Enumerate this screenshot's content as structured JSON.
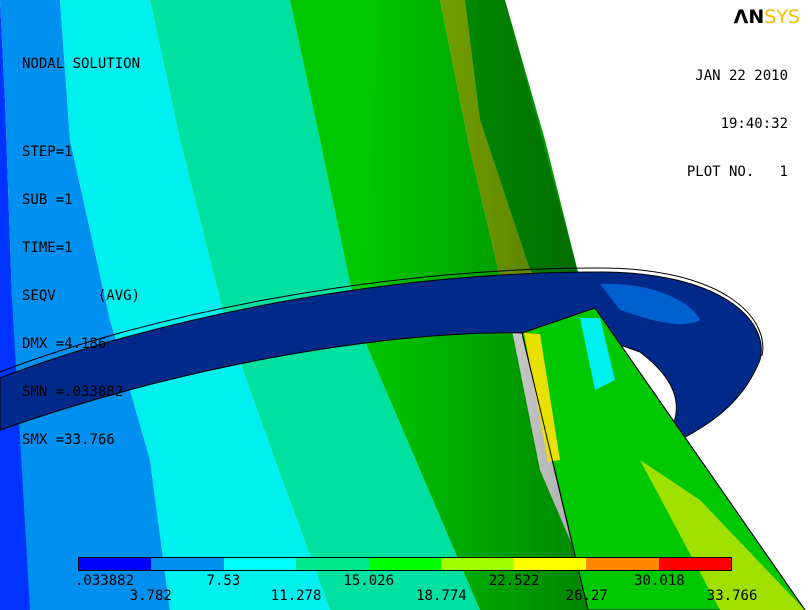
{
  "logo": {
    "part1": "ΛN",
    "part2": "SYS"
  },
  "info": {
    "title": "NODAL SOLUTION",
    "step": "STEP=1",
    "sub": "SUB =1",
    "time": "TIME=1",
    "result": "SEQV     (AVG)",
    "dmx": "DMX =4.186",
    "smn": "SMN =.033882",
    "smx": "SMX =33.766"
  },
  "stamp": {
    "date": "JAN 22 2010",
    "time": "19:40:32",
    "plot": "PLOT NO.   1"
  },
  "legend": {
    "colors": [
      "#0000ff",
      "#0090f0",
      "#00ffff",
      "#00e890",
      "#00ff00",
      "#a0ff00",
      "#ffff00",
      "#ff8800",
      "#ff0000"
    ],
    "labels_bottom": [
      ".033882",
      "3.782",
      "7.53",
      "11.278",
      "15.026",
      "18.774",
      "22.522",
      "26.27",
      "30.018",
      "33.766"
    ]
  },
  "colors": {
    "band_blue": "#0040ff",
    "band_midblue": "#0090f0",
    "band_cyan": "#00ffff",
    "band_teal": "#00e090",
    "band_green": "#00d000",
    "band_lime": "#80d000",
    "band_darkgreen": "#007a00",
    "flange": "#002080"
  }
}
